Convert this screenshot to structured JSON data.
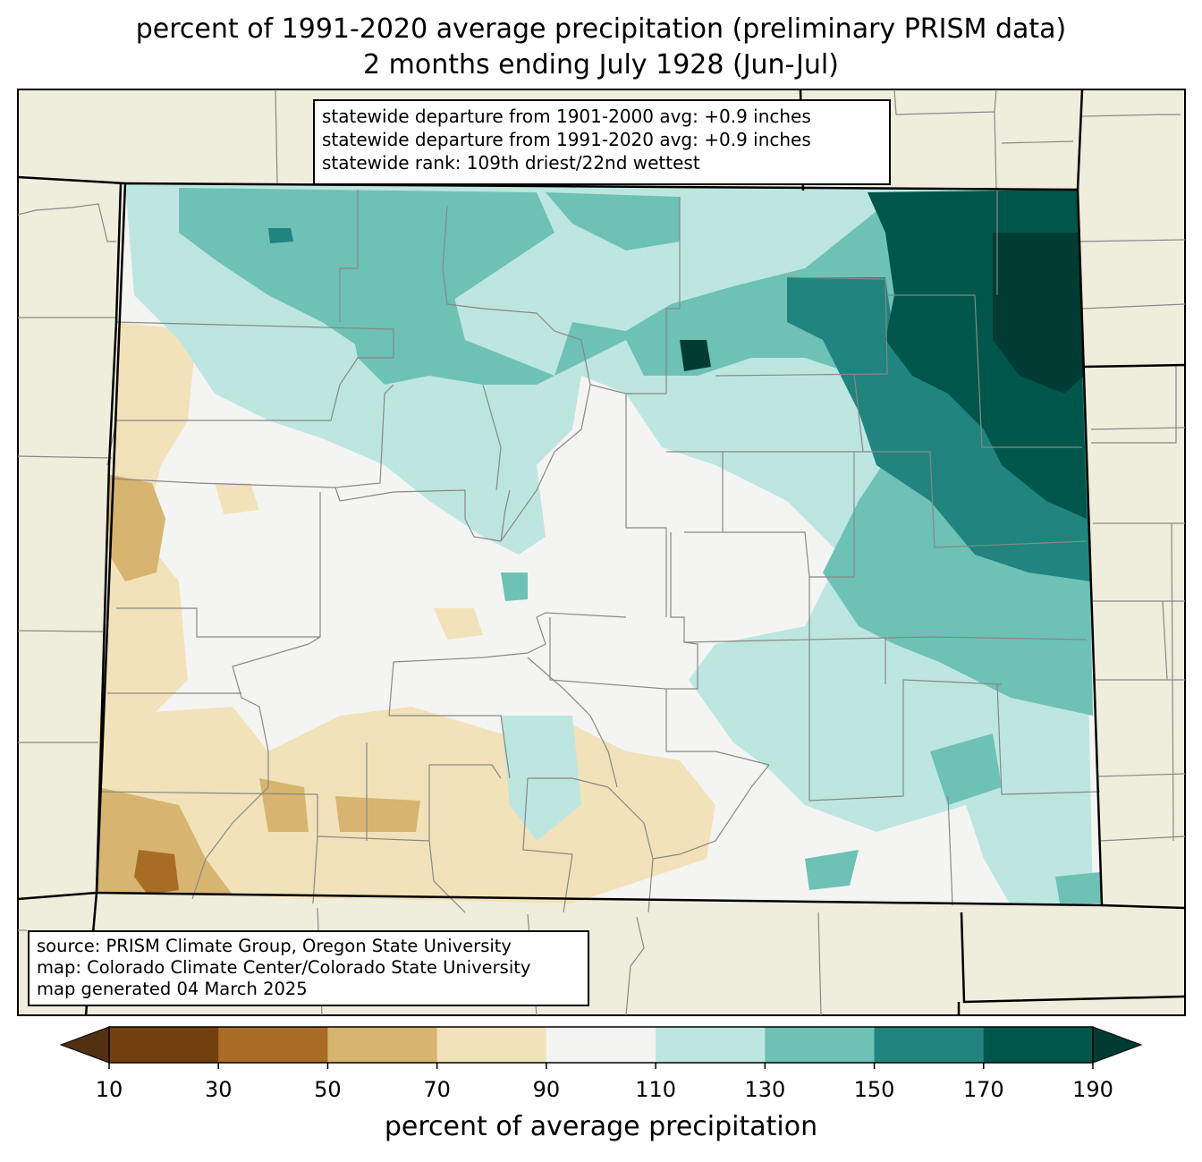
{
  "title": {
    "line1": "percent of 1991-2020 average precipitation (preliminary PRISM data)",
    "line2": "2 months ending July 1928 (Jun-Jul)"
  },
  "stats": {
    "line1": "statewide departure from 1901-2000 avg: +0.9 inches",
    "line2": "statewide departure from 1991-2020 avg: +0.9 inches",
    "line3": "statewide rank: 109th driest/22nd wettest"
  },
  "source": {
    "line1": "source: PRISM Climate Group, Oregon State University",
    "line2": "map: Colorado Climate Center/Colorado State University",
    "line3": "map generated 04 March 2025"
  },
  "colorbar": {
    "label": "percent of average precipitation",
    "ticks": [
      "10",
      "30",
      "50",
      "70",
      "90",
      "110",
      "130",
      "150",
      "170",
      "190"
    ],
    "colors": [
      "#72400e",
      "#a86c25",
      "#d7b46f",
      "#f2e2b9",
      "#f4f5f3",
      "#bde6e1",
      "#6ec1b5",
      "#21847e",
      "#00564a"
    ],
    "under_color": "#533011",
    "over_color": "#003c33"
  },
  "map_colors": {
    "land_background": "#efeedc",
    "county_line": "#888888",
    "state_line": "#000000"
  }
}
